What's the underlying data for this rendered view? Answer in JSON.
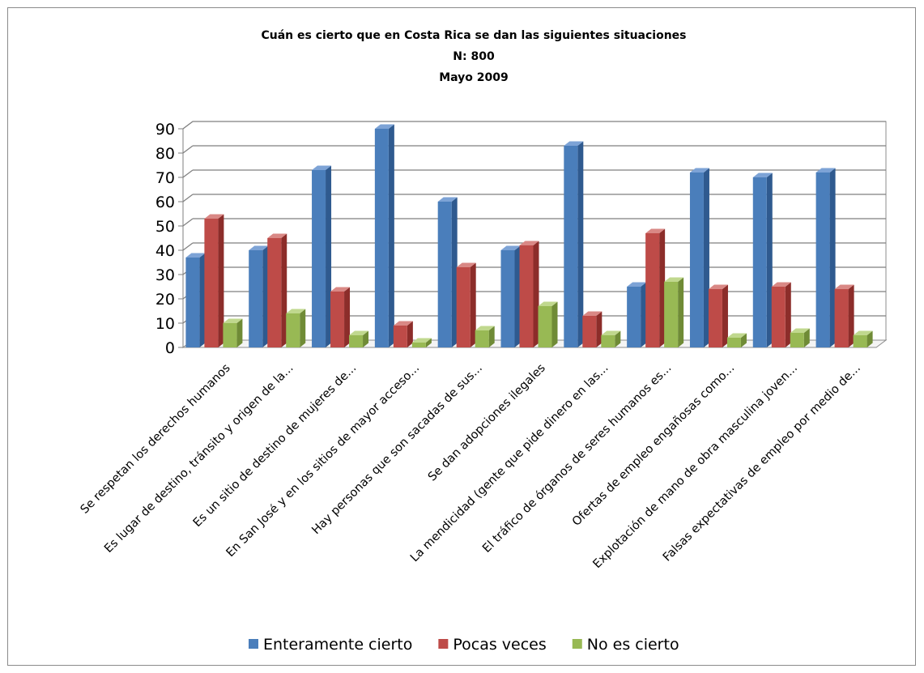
{
  "chart_data": {
    "type": "bar",
    "title_lines": [
      "Cuán es cierto que en Costa Rica se dan las siguientes situaciones",
      "N: 800",
      "Mayo 2009"
    ],
    "categories": [
      "Se respetan los derechos humanos",
      "Es lugar de destino, tránsito y origen de la...",
      "Es un sitio de destino de mujeres de...",
      "En San José y en los sitios de mayor acceso...",
      "Hay personas que son sacadas de sus...",
      "Se dan adopciones ilegales",
      "La mendicidad (gente que pide dinero en las...",
      "El tráfico de órganos de seres humanos es...",
      "Ofertas de empleo engañosas como...",
      "Explotación de mano de obra masculina joven...",
      "Falsas expectativas de empleo por medio de..."
    ],
    "series": [
      {
        "name": "Enteramente cierto",
        "color": "#4a7ebb",
        "side": "#2f5a8f",
        "top": "#7da3d6",
        "values": [
          37,
          40,
          73,
          90,
          60,
          40,
          83,
          25,
          72,
          70,
          72
        ]
      },
      {
        "name": "Pocas veces",
        "color": "#be4b48",
        "side": "#8c2d2a",
        "top": "#d98885",
        "values": [
          53,
          45,
          23,
          9,
          33,
          42,
          13,
          47,
          24,
          25,
          24
        ]
      },
      {
        "name": "No es cierto",
        "color": "#98b954",
        "side": "#6f8b36",
        "top": "#c0d88e",
        "values": [
          10,
          14,
          5,
          2,
          7,
          17,
          5,
          27,
          4,
          6,
          5
        ]
      }
    ],
    "ylim": [
      0,
      90
    ],
    "yticks": [
      "0",
      "10",
      "20",
      "30",
      "40",
      "50",
      "60",
      "70",
      "80",
      "90"
    ],
    "grid": true,
    "legend_position": "bottom"
  }
}
